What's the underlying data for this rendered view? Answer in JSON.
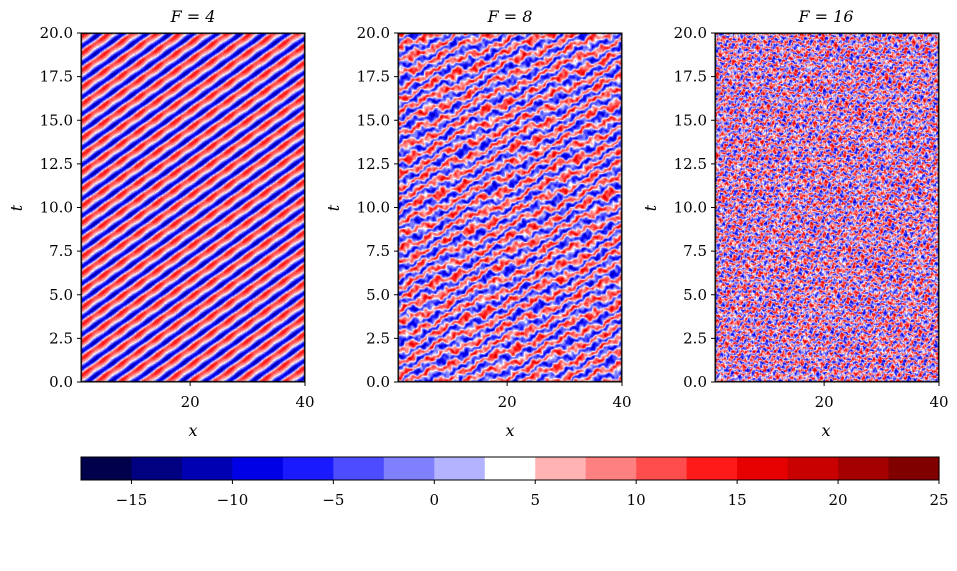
{
  "chart_data": {
    "type": "heatmap",
    "panels": [
      {
        "title": "F = 4",
        "forcing": 4,
        "xlabel": "x",
        "ylabel": "t",
        "xlim": [
          1,
          40
        ],
        "ylim": [
          0.0,
          20.0
        ],
        "xticks": [
          "20",
          "40"
        ],
        "yticks": [
          "0.0",
          "2.5",
          "5.0",
          "7.5",
          "10.0",
          "12.5",
          "15.0",
          "17.5",
          "20.0"
        ],
        "pattern": "regular diagonal travelling waves"
      },
      {
        "title": "F = 8",
        "forcing": 8,
        "xlabel": "x",
        "ylabel": "t",
        "xlim": [
          1,
          40
        ],
        "ylim": [
          0.0,
          20.0
        ],
        "xticks": [
          "20",
          "40"
        ],
        "yticks": [
          "0.0",
          "2.5",
          "5.0",
          "7.5",
          "10.0",
          "12.5",
          "15.0",
          "17.5",
          "20.0"
        ],
        "pattern": "irregular diagonal waves"
      },
      {
        "title": "F = 16",
        "forcing": 16,
        "xlabel": "x",
        "ylabel": "t",
        "xlim": [
          1,
          40
        ],
        "ylim": [
          0.0,
          20.0
        ],
        "xticks": [
          "20",
          "40"
        ],
        "yticks": [
          "0.0",
          "2.5",
          "5.0",
          "7.5",
          "10.0",
          "12.5",
          "15.0",
          "17.5",
          "20.0"
        ],
        "pattern": "turbulent fine-scale structure"
      }
    ],
    "colorbar": {
      "orientation": "horizontal",
      "colormap": "seismic",
      "vmin": -17.5,
      "vmax": 25,
      "levels": 17,
      "ticks": [
        "−15",
        "−10",
        "−5",
        "0",
        "5",
        "10",
        "15",
        "20",
        "25"
      ],
      "tick_values": [
        -15,
        -10,
        -5,
        0,
        5,
        10,
        15,
        20,
        25
      ],
      "colors": [
        "#00004b",
        "#000080",
        "#0000b3",
        "#0000e6",
        "#1a1aff",
        "#4d4dff",
        "#8080ff",
        "#b3b3ff",
        "#ffffff",
        "#ffb3b3",
        "#ff8080",
        "#ff4d4d",
        "#ff1a1a",
        "#e60000",
        "#c80000",
        "#a50000",
        "#800000"
      ]
    }
  }
}
